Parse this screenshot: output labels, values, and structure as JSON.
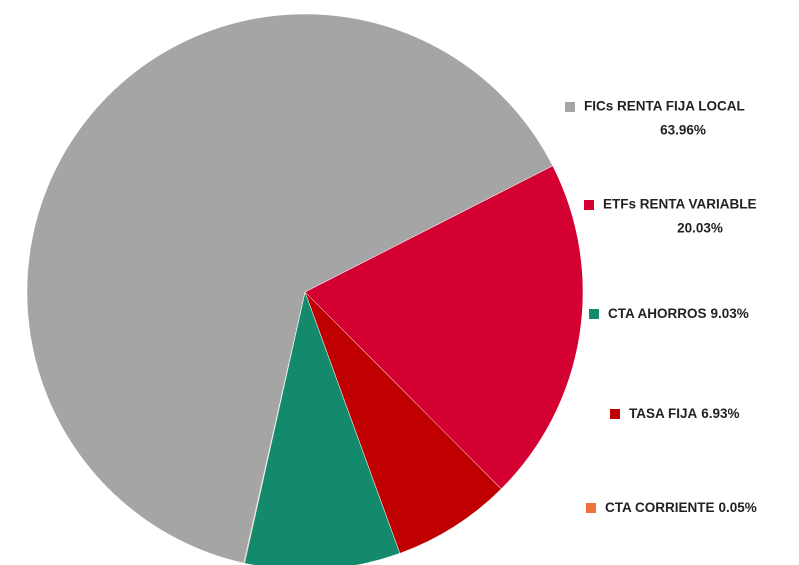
{
  "chart_data": {
    "type": "pie",
    "categories": [
      "FICs RENTA FIJA LOCAL",
      "ETFs RENTA VARIABLE",
      "CTA AHORROS",
      "TASA FIJA",
      "CTA CORRIENTE"
    ],
    "values": [
      63.96,
      20.03,
      9.03,
      6.93,
      0.05
    ],
    "value_labels": [
      "63.96%",
      "20.03%",
      "9.03%",
      "6.93%",
      "0.05%"
    ],
    "colors": [
      "#a5a5a5",
      "#d50032",
      "#138a6c",
      "#c00000",
      "#f0703a"
    ],
    "legend": "right"
  }
}
